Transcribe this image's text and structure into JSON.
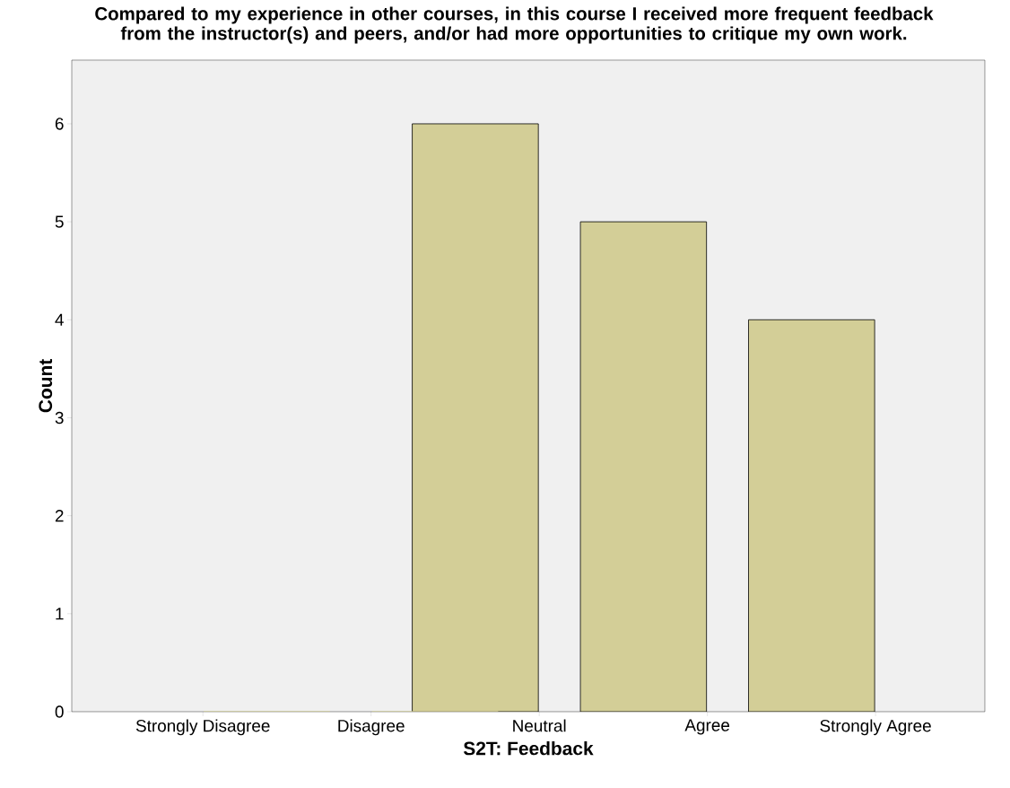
{
  "chart_data": {
    "type": "bar",
    "title": "Compared to my experience in other courses, in this course I received more frequent feedback from the instructor(s) and peers, and/or had more opportunities to critique my own work.",
    "xlabel": "S2T: Feedback",
    "ylabel": "Count",
    "categories": [
      "Strongly Disagree",
      "Disagree",
      "Neutral",
      "Agree",
      "Strongly Agree"
    ],
    "values": [
      0,
      0,
      6,
      5,
      4
    ],
    "color": "#d3ce97",
    "ylim": [
      0,
      6.65
    ],
    "yticks": [
      0,
      1,
      2,
      3,
      4,
      5,
      6
    ],
    "grid": false
  }
}
